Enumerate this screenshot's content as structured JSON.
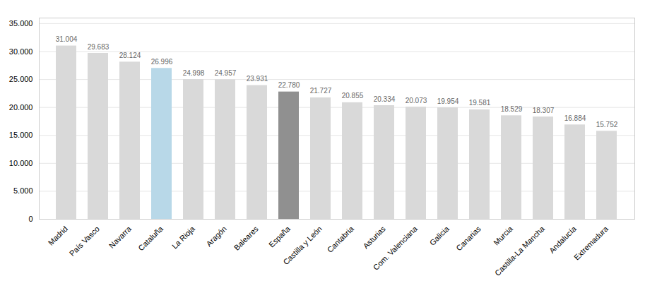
{
  "chart_data": {
    "type": "bar",
    "categories": [
      "Madrid",
      "País Vasco",
      "Navarra",
      "Cataluña",
      "La Rioja",
      "Aragón",
      "Baleares",
      "España",
      "Castilla y León",
      "Cantabria",
      "Asturias",
      "Com. Valenciana",
      "Galicia",
      "Canarias",
      "Murcia",
      "Castilla-La Mancha",
      "Andalucía",
      "Extremadura"
    ],
    "values": [
      31004,
      29683,
      28124,
      26996,
      24998,
      24957,
      23931,
      22780,
      21727,
      20855,
      20334,
      20073,
      19954,
      19581,
      18529,
      18307,
      16884,
      15752
    ],
    "value_labels": [
      "31.004",
      "29.683",
      "28.124",
      "26.996",
      "24.998",
      "24.957",
      "23.931",
      "22.780",
      "21.727",
      "20.855",
      "20.334",
      "20.073",
      "19.954",
      "19.581",
      "18.529",
      "18.307",
      "16.884",
      "15.752"
    ],
    "data_labels": true,
    "colors": [
      "#d9d9d9",
      "#d9d9d9",
      "#d9d9d9",
      "#b8d8e8",
      "#d9d9d9",
      "#d9d9d9",
      "#d9d9d9",
      "#909090",
      "#d9d9d9",
      "#d9d9d9",
      "#d9d9d9",
      "#d9d9d9",
      "#d9d9d9",
      "#d9d9d9",
      "#d9d9d9",
      "#d9d9d9",
      "#d9d9d9",
      "#d9d9d9"
    ],
    "ylim": [
      0,
      36000
    ],
    "yticks": [
      0,
      {
        "value": 5000,
        "label": "5.000"
      },
      {
        "value": 10000,
        "label": "10.000"
      },
      {
        "value": 15000,
        "label": "15.000"
      },
      {
        "value": 20000,
        "label": "20.000"
      },
      {
        "value": 25000,
        "label": "25.000"
      },
      {
        "value": 30000,
        "label": "30.000"
      },
      {
        "value": 35000,
        "label": "35.000"
      }
    ],
    "grid": true
  }
}
